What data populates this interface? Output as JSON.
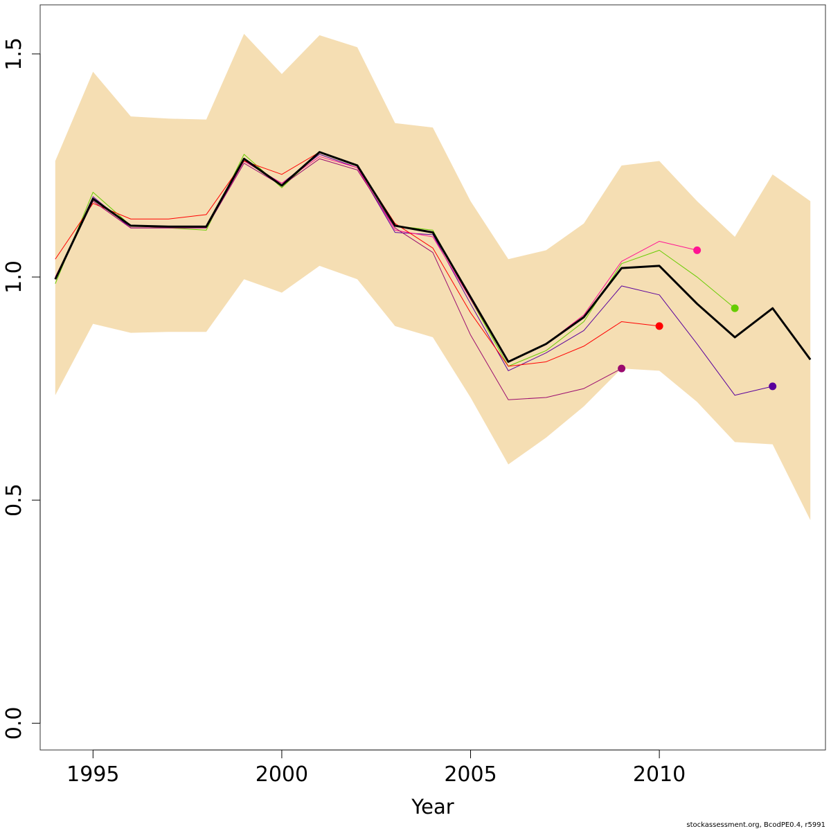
{
  "chart_data": {
    "type": "line",
    "title": "",
    "xlabel": "Year",
    "ylabel": "",
    "xlim": [
      1993.6,
      2014.4
    ],
    "ylim": [
      -0.06,
      1.61
    ],
    "x_ticks": [
      1995,
      2000,
      2005,
      2010
    ],
    "x_tick_labels": [
      "1995",
      "2000",
      "2005",
      "2010"
    ],
    "y_ticks": [
      0.0,
      0.5,
      1.0,
      1.5
    ],
    "y_tick_labels": [
      "0.0",
      "0.5",
      "1.0",
      "1.5"
    ],
    "grid": false,
    "legend": "none",
    "band": {
      "color": "#F5DEB3",
      "x": [
        1994,
        1995,
        1996,
        1997,
        1998,
        1999,
        2000,
        2001,
        2002,
        2003,
        2004,
        2005,
        2006,
        2007,
        2008,
        2009,
        2010,
        2011,
        2012,
        2013,
        2014
      ],
      "upper": [
        1.26,
        1.46,
        1.36,
        1.355,
        1.353,
        1.545,
        1.455,
        1.542,
        1.515,
        1.345,
        1.335,
        1.17,
        1.04,
        1.06,
        1.12,
        1.25,
        1.26,
        1.17,
        1.09,
        1.23,
        1.17
      ],
      "lower": [
        0.735,
        0.895,
        0.875,
        0.877,
        0.877,
        0.995,
        0.965,
        1.025,
        0.995,
        0.89,
        0.865,
        0.73,
        0.58,
        0.64,
        0.71,
        0.795,
        0.79,
        0.72,
        0.63,
        0.625,
        0.455
      ]
    },
    "series": [
      {
        "color": "#000000",
        "width": 3,
        "x": [
          1994,
          1995,
          1996,
          1997,
          1998,
          1999,
          2000,
          2001,
          2002,
          2003,
          2004,
          2005,
          2006,
          2007,
          2008,
          2009,
          2010,
          2011,
          2012,
          2013,
          2014
        ],
        "values": [
          0.995,
          1.175,
          1.115,
          1.113,
          1.113,
          1.265,
          1.205,
          1.28,
          1.25,
          1.115,
          1.1,
          0.955,
          0.81,
          0.85,
          0.91,
          1.02,
          1.025,
          0.94,
          0.865,
          0.93,
          0.815
        ]
      },
      {
        "color": "#5A009C",
        "width": 1,
        "x": [
          1994,
          1995,
          1996,
          1997,
          1998,
          1999,
          2000,
          2001,
          2002,
          2003,
          2004,
          2005,
          2006,
          2007,
          2008,
          2009,
          2010,
          2011,
          2012,
          2013
        ],
        "values": [
          0.995,
          1.18,
          1.11,
          1.11,
          1.11,
          1.26,
          1.21,
          1.275,
          1.245,
          1.1,
          1.095,
          0.94,
          0.79,
          0.83,
          0.88,
          0.98,
          0.96,
          0.85,
          0.735,
          0.755
        ],
        "end_point": true
      },
      {
        "color": "#66CC00",
        "width": 1,
        "x": [
          1994,
          1995,
          1996,
          1997,
          1998,
          1999,
          2000,
          2001,
          2002,
          2003,
          2004,
          2005,
          2006,
          2007,
          2008,
          2009,
          2010,
          2011,
          2012
        ],
        "values": [
          0.985,
          1.19,
          1.115,
          1.11,
          1.105,
          1.275,
          1.2,
          1.28,
          1.25,
          1.115,
          1.105,
          0.95,
          0.8,
          0.835,
          0.9,
          1.03,
          1.06,
          1.0,
          0.93
        ],
        "end_point": true
      },
      {
        "color": "#FF1493",
        "width": 1,
        "x": [
          1994,
          1995,
          1996,
          1997,
          1998,
          1999,
          2000,
          2001,
          2002,
          2003,
          2004,
          2005,
          2006,
          2007,
          2008,
          2009,
          2010,
          2011
        ],
        "values": [
          1.0,
          1.17,
          1.11,
          1.11,
          1.11,
          1.26,
          1.21,
          1.27,
          1.245,
          1.105,
          1.09,
          0.95,
          0.81,
          0.85,
          0.915,
          1.035,
          1.08,
          1.06
        ],
        "end_point": true
      },
      {
        "color": "#FF0000",
        "width": 1,
        "x": [
          1994,
          1995,
          1996,
          1997,
          1998,
          1999,
          2000,
          2001,
          2002,
          2003,
          2004,
          2005,
          2006,
          2007,
          2008,
          2009,
          2010
        ],
        "values": [
          1.04,
          1.165,
          1.13,
          1.13,
          1.14,
          1.26,
          1.23,
          1.28,
          1.25,
          1.12,
          1.065,
          0.92,
          0.8,
          0.81,
          0.845,
          0.9,
          0.89
        ],
        "end_point": true
      },
      {
        "color": "#9B0A6E",
        "width": 1,
        "x": [
          1994,
          1995,
          1996,
          1997,
          1998,
          1999,
          2000,
          2001,
          2002,
          2003,
          2004,
          2005,
          2006,
          2007,
          2008,
          2009
        ],
        "values": [
          0.995,
          1.17,
          1.11,
          1.11,
          1.11,
          1.255,
          1.205,
          1.265,
          1.24,
          1.11,
          1.055,
          0.87,
          0.725,
          0.73,
          0.75,
          0.795
        ],
        "end_point": true
      }
    ]
  },
  "footer": "stockassessment.org, BcodPE0.4, r5991"
}
